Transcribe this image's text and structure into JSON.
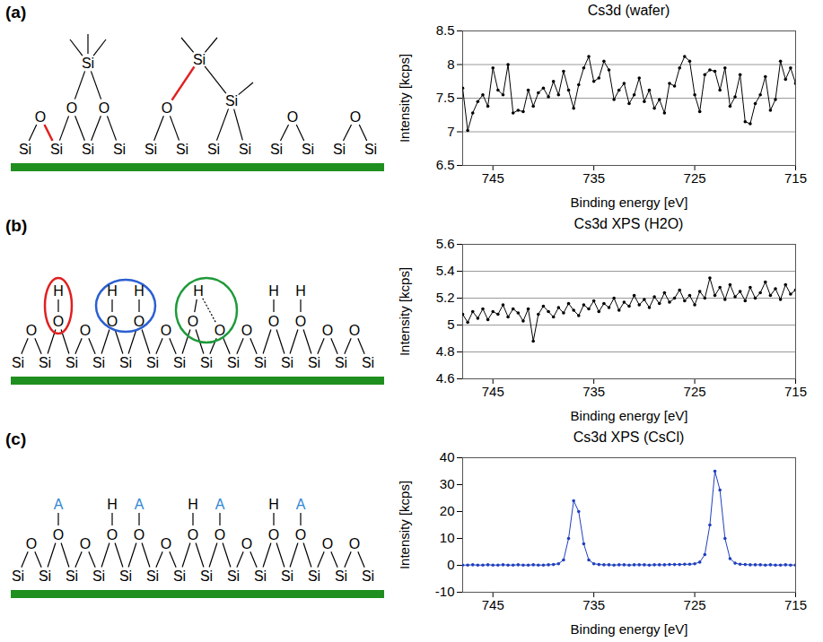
{
  "diagrams": [
    {
      "label": "(a)",
      "atoms": [
        "Si",
        "Si",
        "Si",
        "Si",
        "Si",
        "Si",
        "Si",
        "Si",
        "Si",
        "Si",
        "Si",
        "Si",
        "O",
        "O",
        "O",
        "Si",
        "O",
        "Si",
        "Si",
        "O",
        "O"
      ]
    },
    {
      "label": "(b)",
      "substrate": [
        "Si",
        "Si",
        "Si",
        "Si",
        "Si",
        "Si",
        "Si",
        "Si",
        "Si",
        "Si",
        "Si",
        "Si",
        "Si",
        "Si"
      ],
      "surface": [
        {
          "atom": "O"
        },
        {
          "atom": "O",
          "top": "H"
        },
        {
          "atom": "O"
        },
        {
          "atom": "O",
          "top": "H"
        },
        {
          "atom": "O",
          "top": "H"
        },
        {
          "atom": "O"
        },
        {
          "atom": "O",
          "top": "H"
        },
        {
          "atom": "O"
        },
        {
          "atom": "O"
        },
        {
          "atom": "O",
          "top": "H"
        },
        {
          "atom": "O",
          "top": "H"
        },
        {
          "atom": "O"
        },
        {
          "atom": "O"
        }
      ]
    },
    {
      "label": "(c)",
      "substrate": [
        "Si",
        "Si",
        "Si",
        "Si",
        "Si",
        "Si",
        "Si",
        "Si",
        "Si",
        "Si",
        "Si",
        "Si",
        "Si",
        "Si"
      ],
      "surface": [
        {
          "atom": "O"
        },
        {
          "atom": "O",
          "top": "A",
          "color": "#2e86d4"
        },
        {
          "atom": "O"
        },
        {
          "atom": "O",
          "top": "H"
        },
        {
          "atom": "O",
          "top": "A",
          "color": "#2e86d4"
        },
        {
          "atom": "O"
        },
        {
          "atom": "O",
          "top": "H"
        },
        {
          "atom": "O",
          "top": "A",
          "color": "#2e86d4"
        },
        {
          "atom": "O"
        },
        {
          "atom": "O",
          "top": "H"
        },
        {
          "atom": "O",
          "top": "A",
          "color": "#2e86d4"
        },
        {
          "atom": "O"
        },
        {
          "atom": "O"
        }
      ]
    }
  ],
  "chart_data": [
    {
      "type": "line",
      "title": "Cs3d (wafer)",
      "x_label": "Binding energy [eV]",
      "y_label": "Intensity [kcps]",
      "x": [
        748,
        747.5,
        747,
        746.5,
        746,
        745.5,
        745,
        744.5,
        744,
        743.5,
        743,
        742.5,
        742,
        741.5,
        741,
        740.5,
        740,
        739.5,
        739,
        738.5,
        738,
        737.5,
        737,
        736.5,
        736,
        735.5,
        735,
        734.5,
        734,
        733.5,
        733,
        732.5,
        732,
        731.5,
        731,
        730.5,
        730,
        729.5,
        729,
        728.5,
        728,
        727.5,
        727,
        726.5,
        726,
        725.5,
        725,
        724.5,
        724,
        723.5,
        723,
        722.5,
        722,
        721.5,
        721,
        720.5,
        720,
        719.5,
        719,
        718.5,
        718,
        717.5,
        717,
        716.5,
        716,
        715.5,
        715
      ],
      "values": [
        7.65,
        7.02,
        7.28,
        7.45,
        7.55,
        7.38,
        7.95,
        7.62,
        7.55,
        8.0,
        7.28,
        7.32,
        7.3,
        7.62,
        7.38,
        7.58,
        7.65,
        7.52,
        7.75,
        7.55,
        7.9,
        7.62,
        7.35,
        7.7,
        7.95,
        8.12,
        7.75,
        7.8,
        8.05,
        7.92,
        7.48,
        7.62,
        7.72,
        7.42,
        7.55,
        7.8,
        7.45,
        7.62,
        7.35,
        7.48,
        7.28,
        7.72,
        7.68,
        7.95,
        8.12,
        8.05,
        7.55,
        7.3,
        7.85,
        7.92,
        7.9,
        7.62,
        7.95,
        7.38,
        7.52,
        7.85,
        7.15,
        7.12,
        7.42,
        7.55,
        7.82,
        7.32,
        7.48,
        8.05,
        7.78,
        7.95,
        7.72
      ],
      "color": "#000000",
      "marker": "circle",
      "line_style": "solid",
      "xlim": [
        748,
        715
      ],
      "xticks": [
        745,
        735,
        725,
        715
      ],
      "ylim": [
        6.5,
        8.5
      ],
      "yticks": [
        6.5,
        7,
        7.5,
        8,
        8.5
      ],
      "grid": true
    },
    {
      "type": "line",
      "title": "Cs3d XPS (H2O)",
      "x_label": "Binding energy [eV]",
      "y_label": "Intensity [kcps]",
      "x": [
        748,
        747.5,
        747,
        746.5,
        746,
        745.5,
        745,
        744.5,
        744,
        743.5,
        743,
        742.5,
        742,
        741.5,
        741,
        740.5,
        740,
        739.5,
        739,
        738.5,
        738,
        737.5,
        737,
        736.5,
        736,
        735.5,
        735,
        734.5,
        734,
        733.5,
        733,
        732.5,
        732,
        731.5,
        731,
        730.5,
        730,
        729.5,
        729,
        728.5,
        728,
        727.5,
        727,
        726.5,
        726,
        725.5,
        725,
        724.5,
        724,
        723.5,
        723,
        722.5,
        722,
        721.5,
        721,
        720.5,
        720,
        719.5,
        719,
        718.5,
        718,
        717.5,
        717,
        716.5,
        716,
        715.5,
        715
      ],
      "values": [
        5.08,
        5.02,
        5.1,
        5.05,
        5.12,
        5.04,
        5.1,
        5.08,
        5.15,
        5.06,
        5.12,
        5.09,
        5.03,
        5.12,
        4.88,
        5.08,
        5.14,
        5.1,
        5.06,
        5.13,
        5.09,
        5.16,
        5.11,
        5.07,
        5.15,
        5.12,
        5.18,
        5.1,
        5.16,
        5.13,
        5.2,
        5.11,
        5.17,
        5.14,
        5.22,
        5.15,
        5.19,
        5.13,
        5.21,
        5.16,
        5.24,
        5.17,
        5.2,
        5.26,
        5.18,
        5.22,
        5.15,
        5.25,
        5.2,
        5.35,
        5.22,
        5.28,
        5.19,
        5.3,
        5.21,
        5.25,
        5.18,
        5.28,
        5.2,
        5.24,
        5.32,
        5.22,
        5.27,
        5.19,
        5.3,
        5.23,
        5.26
      ],
      "color": "#000000",
      "marker": "circle",
      "line_style": "solid",
      "xlim": [
        748,
        715
      ],
      "xticks": [
        745,
        735,
        725,
        715
      ],
      "ylim": [
        4.6,
        5.6
      ],
      "yticks": [
        4.6,
        4.8,
        5,
        5.2,
        5.4,
        5.6
      ],
      "grid": true
    },
    {
      "type": "line",
      "title": "Cs3d XPS (CsCl)",
      "x_label": "Binding energy [eV]",
      "y_label": "Intensity [kcps]",
      "x": [
        748,
        747.5,
        747,
        746.5,
        746,
        745.5,
        745,
        744.5,
        744,
        743.5,
        743,
        742.5,
        742,
        741.5,
        741,
        740.5,
        740,
        739.5,
        739,
        738.5,
        738,
        737.5,
        737,
        736.5,
        736,
        735.5,
        735,
        734.5,
        734,
        733.5,
        733,
        732.5,
        732,
        731.5,
        731,
        730.5,
        730,
        729.5,
        729,
        728.5,
        728,
        727.5,
        727,
        726.5,
        726,
        725.5,
        725,
        724.5,
        724,
        723.5,
        723,
        722.5,
        722,
        721.5,
        721,
        720.5,
        720,
        719.5,
        719,
        718.5,
        718,
        717.5,
        717,
        716.5,
        716,
        715.5,
        715
      ],
      "values": [
        0.1,
        0.1,
        0.2,
        0.1,
        0.1,
        0.2,
        0.1,
        0.1,
        0.2,
        0.1,
        0.1,
        0.2,
        0.1,
        0.1,
        0.2,
        0.1,
        0.1,
        0.2,
        0.3,
        0.6,
        2,
        10,
        24,
        20,
        8,
        2,
        0.6,
        0.3,
        0.2,
        0.2,
        0.1,
        0.2,
        0.2,
        0.1,
        0.2,
        0.2,
        0.2,
        0.1,
        0.2,
        0.2,
        0.2,
        0.3,
        0.3,
        0.3,
        0.4,
        0.4,
        0.6,
        1.2,
        4,
        15,
        35,
        28,
        10,
        2.5,
        0.8,
        0.4,
        0.3,
        0.2,
        0.2,
        0.2,
        0.1,
        0.2,
        0.1,
        0.1,
        0.2,
        0.1,
        0.1
      ],
      "color": "#1f3fbf",
      "marker": "circle",
      "line_style": "solid",
      "xlim": [
        748,
        715
      ],
      "xticks": [
        745,
        735,
        725,
        715
      ],
      "ylim": [
        -10,
        40
      ],
      "yticks": [
        -10,
        0,
        10,
        20,
        30,
        40
      ],
      "grid": false
    }
  ]
}
